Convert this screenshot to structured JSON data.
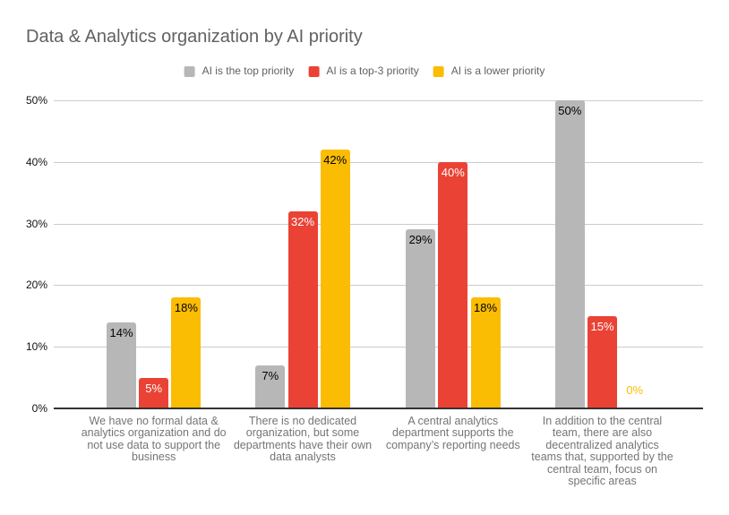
{
  "title": "Data & Analytics organization by AI priority",
  "colors": {
    "background": "#ffffff",
    "title": "#616161",
    "legend_label": "#616161",
    "gridline": "#cccccc",
    "axis_line": "#333333",
    "ytick_label": "#111111",
    "category_label": "#757575"
  },
  "chart_data": {
    "type": "bar",
    "title": "Data & Analytics organization by AI priority",
    "xlabel": "",
    "ylabel": "",
    "ylim": [
      0,
      50
    ],
    "yticks": [
      0,
      10,
      20,
      30,
      40,
      50
    ],
    "ytick_labels": [
      "0%",
      "10%",
      "20%",
      "30%",
      "40%",
      "50%"
    ],
    "grid": true,
    "legend_position": "top",
    "categories": [
      "We have no formal data & analytics organization and do not use data to support the business",
      "There is no dedicated organization, but some departments have their own data analysts",
      "A central analytics department supports the company’s reporting needs",
      "In addition to the central team, there are also decentralized analytics teams that, supported by the central team, focus on specific areas"
    ],
    "category_label_lines": [
      [
        "We have no formal data &",
        "analytics organization and do",
        "not use data to support the",
        "business"
      ],
      [
        "There is no dedicated",
        "organization, but some",
        "departments have their own",
        "data analysts"
      ],
      [
        "A central analytics",
        "department supports the",
        "company’s reporting needs"
      ],
      [
        "In addition to the central",
        "team, there are also",
        "decentralized analytics",
        "teams that, supported by the",
        "central team, focus on",
        "specific areas"
      ]
    ],
    "series": [
      {
        "name": "AI is the top priority",
        "color": "#b7b7b7",
        "label_color": "#000000",
        "values": [
          14,
          7,
          29,
          50
        ],
        "labels": [
          "14%",
          "7%",
          "29%",
          "50%"
        ]
      },
      {
        "name": "AI is a top-3 priority",
        "color": "#ea4335",
        "label_color": "#ffffff",
        "values": [
          5,
          32,
          40,
          15
        ],
        "labels": [
          "5%",
          "32%",
          "40%",
          "15%"
        ]
      },
      {
        "name": "AI is a lower priority",
        "color": "#fbbc04",
        "label_color": "#000000",
        "values": [
          18,
          42,
          18,
          0
        ],
        "labels": [
          "18%",
          "42%",
          "18%",
          "0%"
        ]
      }
    ]
  }
}
